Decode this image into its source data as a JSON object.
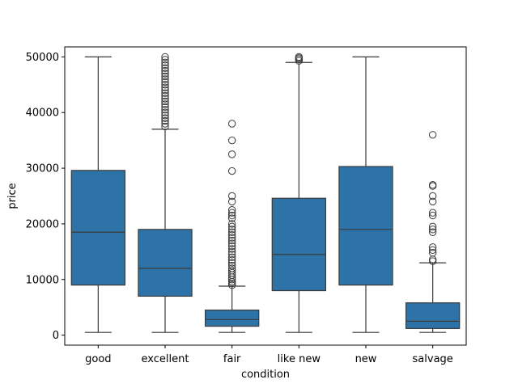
{
  "chart_data": {
    "type": "box",
    "title": "",
    "xlabel": "condition",
    "ylabel": "price",
    "ylim": [
      -1800,
      51800
    ],
    "yticks": [
      0,
      10000,
      20000,
      30000,
      40000,
      50000
    ],
    "box_color": "#2e73a8",
    "line_color": "#3a3a3a",
    "grid": false,
    "categories": [
      "good",
      "excellent",
      "fair",
      "like new",
      "new",
      "salvage"
    ],
    "boxes": [
      {
        "category": "good",
        "whisker_low": 500,
        "q1": 9000,
        "median": 18500,
        "q3": 29600,
        "whisker_high": 50000,
        "outliers": []
      },
      {
        "category": "excellent",
        "whisker_low": 500,
        "q1": 7000,
        "median": 12000,
        "q3": 19000,
        "whisker_high": 37000,
        "outliers": [
          37500,
          38000,
          38500,
          39000,
          39500,
          40000,
          40500,
          41000,
          41500,
          42000,
          42500,
          43000,
          43500,
          44000,
          44500,
          45000,
          45500,
          46000,
          46500,
          47000,
          47500,
          48000,
          48500,
          49000,
          49500,
          50000
        ]
      },
      {
        "category": "fair",
        "whisker_low": 500,
        "q1": 1600,
        "median": 2800,
        "q3": 4500,
        "whisker_high": 8800,
        "outliers": [
          9000,
          9300,
          9600,
          10000,
          10400,
          10800,
          11200,
          11600,
          12000,
          12500,
          13000,
          13500,
          14000,
          14500,
          15000,
          15500,
          16000,
          16500,
          17000,
          17500,
          18000,
          18500,
          19000,
          19500,
          20000,
          21000,
          21500,
          22000,
          22500,
          24000,
          25000,
          29500,
          32500,
          35000,
          38000
        ]
      },
      {
        "category": "like new",
        "whisker_low": 500,
        "q1": 8000,
        "median": 14500,
        "q3": 24600,
        "whisker_high": 49000,
        "outliers": [
          49300,
          49600,
          49800,
          50000
        ]
      },
      {
        "category": "new",
        "whisker_low": 500,
        "q1": 9000,
        "median": 19000,
        "q3": 30300,
        "whisker_high": 50000,
        "outliers": []
      },
      {
        "category": "salvage",
        "whisker_low": 500,
        "q1": 1200,
        "median": 2500,
        "q3": 5800,
        "whisker_high": 13000,
        "outliers": [
          13300,
          13600,
          14800,
          15300,
          15800,
          18500,
          19000,
          19500,
          21500,
          22000,
          24000,
          25000,
          26800,
          27000,
          36000
        ]
      }
    ]
  }
}
